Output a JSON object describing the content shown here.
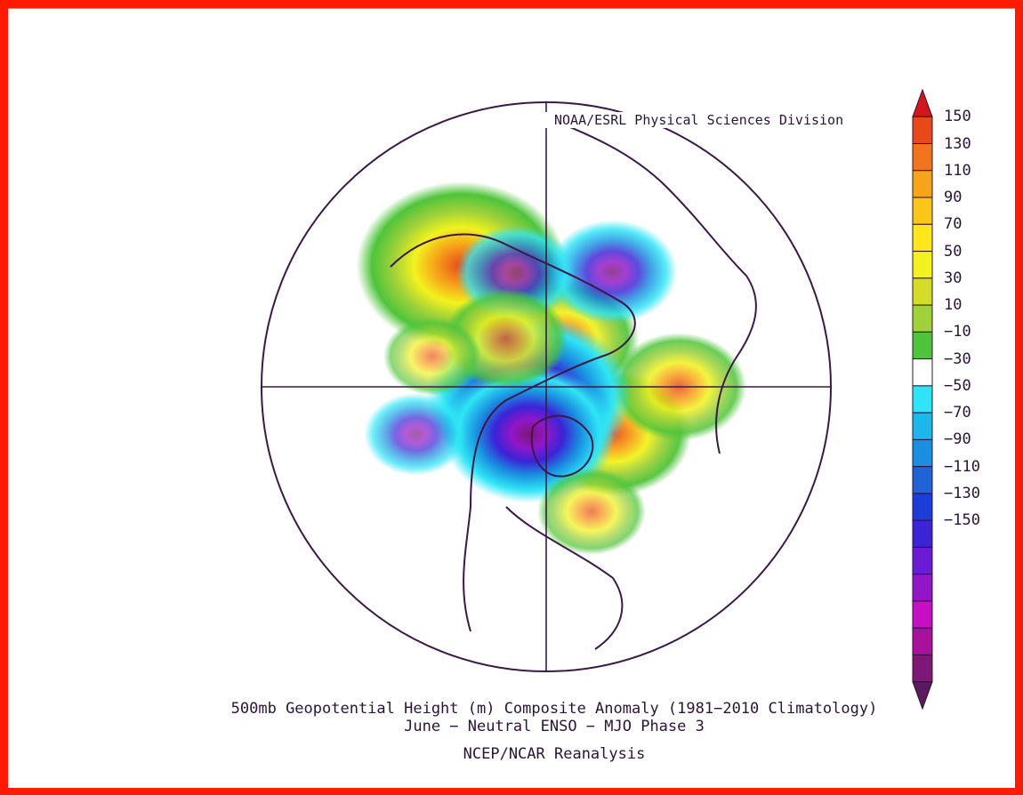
{
  "credit": "NOAA/ESRL Physical Sciences Division",
  "title_line1": "500mb Geopotential Height (m) Composite Anomaly (1981−2010 Climatology)",
  "title_line2": "June − Neutral ENSO − MJO Phase 3",
  "source": "NCEP/NCAR Reanalysis",
  "colorbar": {
    "labels": [
      "150",
      "130",
      "110",
      "90",
      "70",
      "50",
      "30",
      "10",
      "−10",
      "−30",
      "−50",
      "−70",
      "−90",
      "−110",
      "−130",
      "−150"
    ],
    "colors": [
      "#d2171b",
      "#e8491a",
      "#f2751e",
      "#f7a41a",
      "#fbc51a",
      "#fde61a",
      "#f2f21e",
      "#d3dc26",
      "#9fd13a",
      "#4fc43b",
      "#ffffff",
      "#2fe5f5",
      "#1cb8ec",
      "#1a8fe0",
      "#1f63d6",
      "#1c3dd8",
      "#3b24d6",
      "#6a1bd4",
      "#9216c8",
      "#c40fc4",
      "#a8129a",
      "#7e1877",
      "#5a1a5e"
    ]
  },
  "anomaly_centers": [
    {
      "lon": -145,
      "lat": 35,
      "value": 130
    },
    {
      "lon": 160,
      "lat": 70,
      "value": 75
    },
    {
      "lon": 55,
      "lat": 58,
      "value": 80
    },
    {
      "lon": 90,
      "lat": 40,
      "value": 60
    },
    {
      "lon": -60,
      "lat": 82,
      "value": -125
    },
    {
      "lon": -20,
      "lat": 70,
      "value": -95
    },
    {
      "lon": 150,
      "lat": 40,
      "value": -55
    },
    {
      "lon": -165,
      "lat": 45,
      "value": -45
    },
    {
      "lon": -70,
      "lat": 38,
      "value": -30
    },
    {
      "lon": -140,
      "lat": 65,
      "value": 50
    },
    {
      "lon": 20,
      "lat": 40,
      "value": 35
    },
    {
      "lon": -105,
      "lat": 45,
      "value": 25
    }
  ]
}
